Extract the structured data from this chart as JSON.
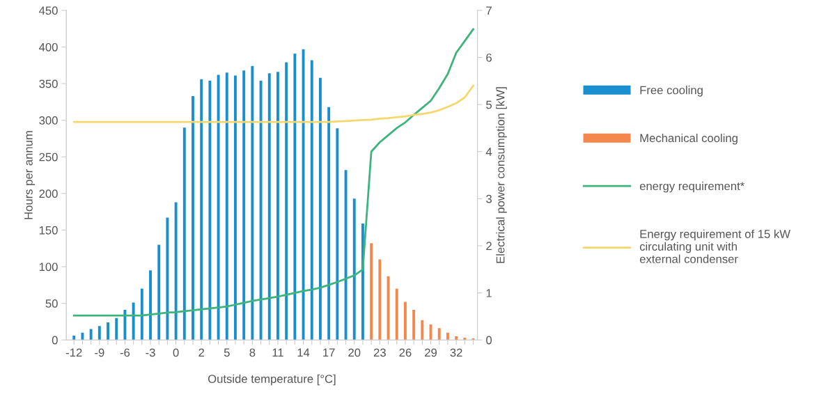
{
  "chart_data": {
    "type": "bar",
    "xlabel": "Outside temperature [°C]",
    "ylabel": "Hours per annum",
    "y2label": "Electrical power consumption [kW]",
    "categories": [
      "-12",
      null,
      null,
      "-9",
      null,
      null,
      "-6",
      null,
      null,
      "-3",
      null,
      null,
      "0",
      null,
      null,
      "2",
      null,
      null,
      "5",
      null,
      null,
      "8",
      null,
      null,
      "11",
      null,
      null,
      "14",
      null,
      null,
      "17",
      null,
      null,
      "20",
      null,
      null,
      "23",
      null,
      null,
      "26",
      null,
      null,
      "29",
      null,
      null,
      "32",
      null,
      null
    ],
    "series": [
      {
        "name": "Free cooling",
        "color": "#1a8fd0",
        "values": [
          6,
          10,
          15,
          19,
          24,
          30,
          41,
          51,
          70,
          95,
          130,
          167,
          188,
          290,
          333,
          356,
          354,
          362,
          365,
          361,
          368,
          374,
          354,
          364,
          366,
          379,
          391,
          397,
          382,
          358,
          318,
          289,
          232,
          193,
          159,
          null,
          null,
          null,
          null,
          null,
          null,
          null,
          null,
          null,
          null,
          null,
          null,
          null
        ]
      },
      {
        "name": "Mechanical cooling",
        "color": "#f4874b",
        "values": [
          null,
          null,
          null,
          null,
          null,
          null,
          null,
          null,
          null,
          null,
          null,
          null,
          null,
          null,
          null,
          null,
          null,
          null,
          null,
          null,
          null,
          null,
          null,
          null,
          null,
          null,
          null,
          null,
          null,
          null,
          null,
          null,
          null,
          null,
          null,
          132,
          110,
          87,
          70,
          52,
          41,
          27,
          21,
          16,
          10,
          5,
          3,
          2
        ]
      },
      {
        "name": "energy requirement*",
        "type": "line",
        "axis": "y2",
        "color": "#3cb47c",
        "values": [
          0.52,
          0.52,
          0.52,
          0.52,
          0.52,
          0.52,
          0.52,
          0.52,
          0.52,
          0.54,
          0.56,
          0.58,
          0.59,
          0.61,
          0.63,
          0.65,
          0.67,
          0.69,
          0.71,
          0.75,
          0.79,
          0.83,
          0.86,
          0.89,
          0.92,
          0.96,
          1.0,
          1.04,
          1.07,
          1.11,
          1.17,
          1.23,
          1.3,
          1.37,
          1.5,
          4.0,
          4.2,
          4.35,
          4.5,
          4.62,
          4.78,
          4.93,
          5.08,
          5.35,
          5.65,
          6.1,
          6.35,
          6.6
        ]
      },
      {
        "name": "Energy requirement of 15 kW\ncirculating unit with\nexternal condenser",
        "type": "line",
        "axis": "y2",
        "color": "#f5d76e",
        "values": [
          4.63,
          4.63,
          4.63,
          4.63,
          4.63,
          4.63,
          4.63,
          4.63,
          4.63,
          4.63,
          4.63,
          4.63,
          4.63,
          4.63,
          4.63,
          4.63,
          4.63,
          4.63,
          4.63,
          4.63,
          4.63,
          4.63,
          4.63,
          4.63,
          4.63,
          4.63,
          4.63,
          4.63,
          4.63,
          4.63,
          4.63,
          4.64,
          4.65,
          4.66,
          4.67,
          4.68,
          4.7,
          4.71,
          4.73,
          4.75,
          4.78,
          4.8,
          4.83,
          4.88,
          4.95,
          5.03,
          5.15,
          5.4
        ]
      }
    ],
    "ylim": [
      0,
      450
    ],
    "yticks": [
      0,
      50,
      100,
      150,
      200,
      250,
      300,
      350,
      400,
      450
    ],
    "y2lim": [
      0,
      7
    ],
    "y2ticks": [
      0,
      1,
      2,
      3,
      4,
      5,
      6,
      7
    ],
    "grid": false,
    "legend": "right",
    "marker": "none",
    "line_style": "solid"
  }
}
